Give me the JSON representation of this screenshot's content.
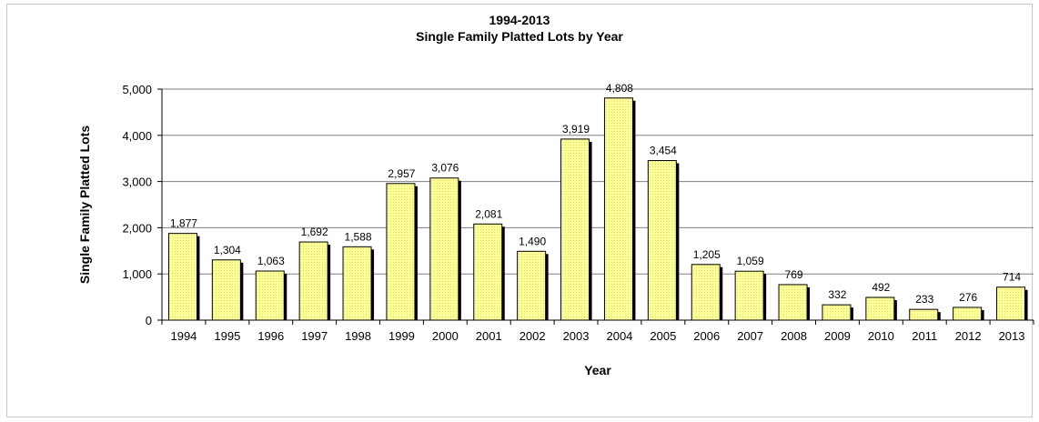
{
  "chart_data": {
    "type": "bar",
    "title": "1994-2013",
    "subtitle": "Single Family Platted Lots by Year",
    "xlabel": "Year",
    "ylabel": "Single Family Platted Lots",
    "ylim": [
      0,
      5000
    ],
    "yticks": [
      0,
      1000,
      2000,
      3000,
      4000,
      5000
    ],
    "ytick_labels": [
      "0",
      "1,000",
      "2,000",
      "3,000",
      "4,000",
      "5,000"
    ],
    "grid": true,
    "legend": "none",
    "categories": [
      "1994",
      "1995",
      "1996",
      "1997",
      "1998",
      "1999",
      "2000",
      "2001",
      "2002",
      "2003",
      "2004",
      "2005",
      "2006",
      "2007",
      "2008",
      "2009",
      "2010",
      "2011",
      "2012",
      "2013"
    ],
    "values": [
      1877,
      1304,
      1063,
      1692,
      1588,
      2957,
      3076,
      2081,
      1490,
      3919,
      4808,
      3454,
      1205,
      1059,
      769,
      332,
      492,
      233,
      276,
      714
    ],
    "value_labels": [
      "1,877",
      "1,304",
      "1,063",
      "1,692",
      "1,588",
      "2,957",
      "3,076",
      "2,081",
      "1,490",
      "3,919",
      "4,808",
      "3,454",
      "1,205",
      "1,059",
      "769",
      "332",
      "492",
      "233",
      "276",
      "714"
    ],
    "colors": {
      "bar": "#ffff99",
      "bar_edge": "#000000",
      "bar_shadow": "#000000",
      "grid": "#808080"
    }
  }
}
